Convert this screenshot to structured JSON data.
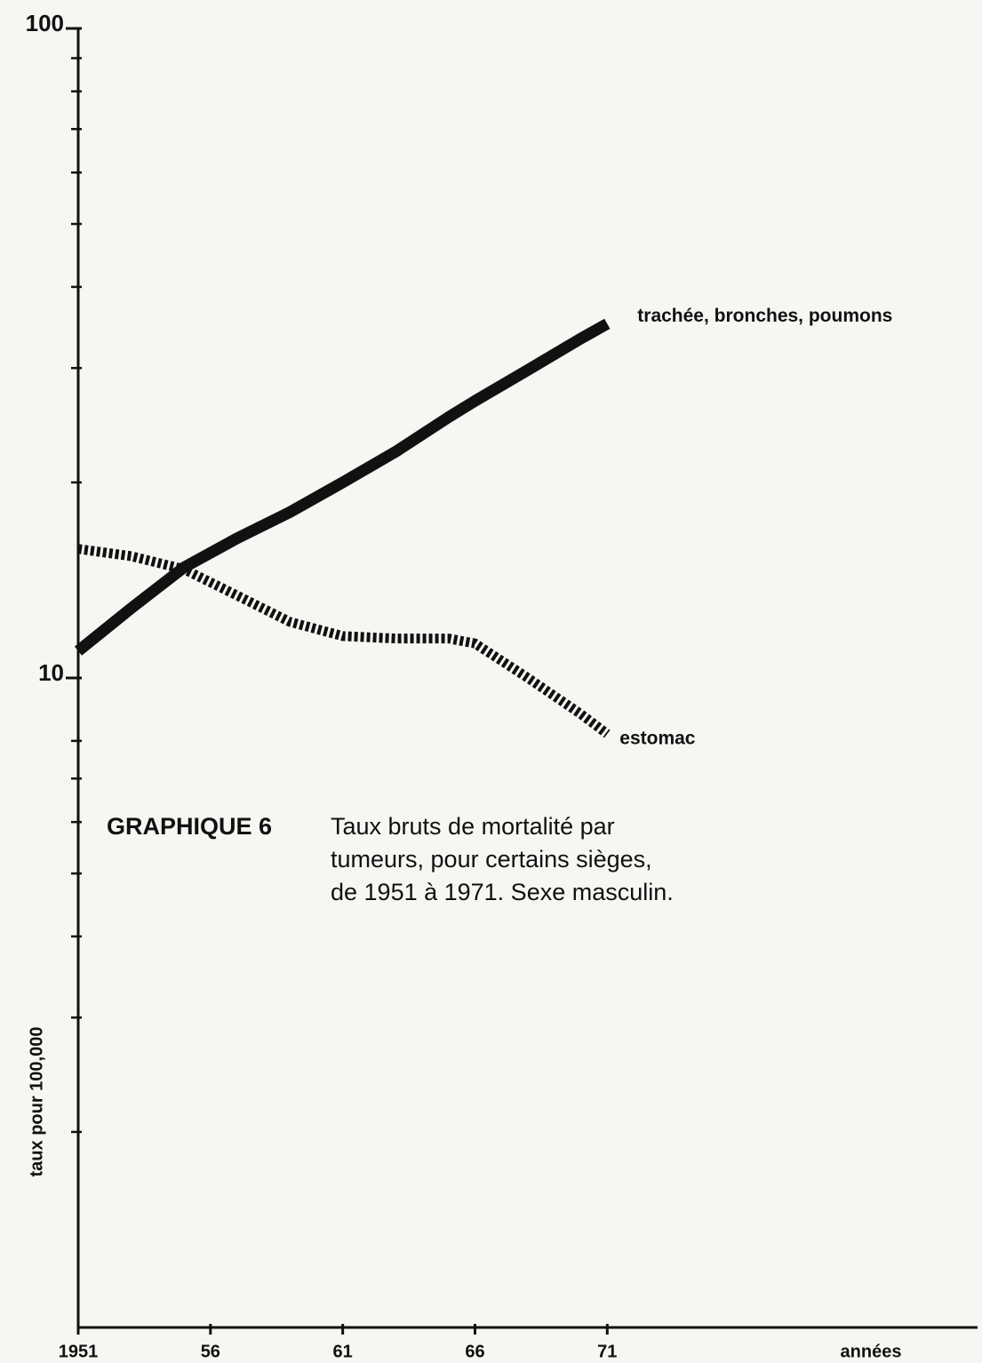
{
  "chart_data": {
    "type": "line",
    "y_log": true,
    "x": [
      1951,
      1953,
      1955,
      1957,
      1959,
      1961,
      1963,
      1965,
      1966,
      1968,
      1970,
      1971
    ],
    "series": [
      {
        "name": "trachée, bronches, poumons",
        "color": "#111111",
        "style": "solid",
        "values": [
          11.0,
          12.8,
          14.8,
          16.4,
          18,
          20,
          22.3,
          25.2,
          26.7,
          29.8,
          33.3,
          35.1
        ]
      },
      {
        "name": "estomac",
        "color": "#111111",
        "style": "dotted",
        "values": [
          15.8,
          15.4,
          14.7,
          13.4,
          12.2,
          11.6,
          11.5,
          11.5,
          11.3,
          10,
          8.8,
          8.2
        ]
      }
    ],
    "ylim": [
      1,
      100
    ],
    "yticks": [
      10,
      100
    ],
    "yminor": [
      2,
      3,
      4,
      5,
      6,
      7,
      8,
      20,
      30,
      40,
      50,
      60,
      70,
      80,
      90
    ],
    "xlim": [
      1951,
      1985
    ],
    "xticks": [
      1951,
      {
        "value": 1956,
        "label": "56"
      },
      {
        "value": 1961,
        "label": "61"
      },
      {
        "value": 1966,
        "label": "66"
      },
      {
        "value": 1971,
        "label": "71"
      }
    ],
    "xlabel": "années",
    "ylabel": "taux pour 100,000",
    "annotation": "GRAPHIQUE 6",
    "caption": [
      "Taux bruts de mortalité par",
      "tumeurs, pour certains sièges,",
      "de 1951 à 1971. Sexe masculin."
    ]
  }
}
